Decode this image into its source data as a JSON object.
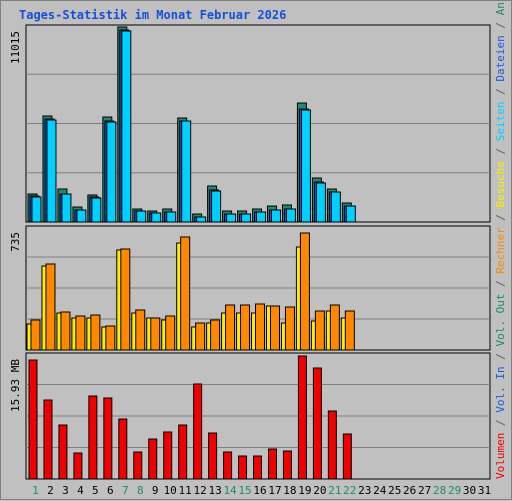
{
  "title": "Tages-Statistik im Monat Februar 2026",
  "chart_data": [
    {
      "type": "bar",
      "name": "top",
      "scale_label": "11015",
      "ylim": [
        0,
        11015
      ],
      "x": [
        "1",
        "2",
        "3",
        "4",
        "5",
        "6",
        "7",
        "8",
        "9",
        "10",
        "11",
        "12",
        "13",
        "14",
        "15",
        "16",
        "17",
        "18",
        "19",
        "20",
        "21",
        "22",
        "23",
        "24",
        "25",
        "26",
        "27",
        "28",
        "29",
        "30",
        "31"
      ],
      "series": [
        {
          "name": "Anfragen",
          "color": "#1e8a70",
          "values": [
            1600,
            5960,
            1860,
            840,
            1510,
            5920,
            11015,
            740,
            640,
            720,
            5860,
            430,
            2020,
            640,
            620,
            740,
            880,
            940,
            6700,
            2470,
            1840,
            1050,
            null,
            null,
            null,
            null,
            null,
            null,
            null,
            null,
            null
          ]
        },
        {
          "name": "Dateien",
          "color": "#1a5ae0",
          "values": [
            1470,
            5840,
            1600,
            700,
            1400,
            5700,
            10850,
            620,
            520,
            580,
            5730,
            290,
            1810,
            480,
            460,
            580,
            690,
            740,
            6380,
            2260,
            1700,
            930,
            null,
            null,
            null,
            null,
            null,
            null,
            null,
            null,
            null
          ]
        },
        {
          "name": "Seiten",
          "color": "#00d0ff",
          "values": [
            1420,
            5780,
            1560,
            680,
            1350,
            5650,
            10800,
            600,
            500,
            560,
            5700,
            280,
            1760,
            460,
            440,
            560,
            670,
            720,
            6300,
            2200,
            1680,
            900,
            null,
            null,
            null,
            null,
            null,
            null,
            null,
            null,
            null
          ]
        }
      ]
    },
    {
      "type": "bar",
      "name": "middle",
      "scale_label": "735",
      "ylim": [
        0,
        735
      ],
      "x": [
        "1",
        "2",
        "3",
        "4",
        "5",
        "6",
        "7",
        "8",
        "9",
        "10",
        "11",
        "12",
        "13",
        "14",
        "15",
        "16",
        "17",
        "18",
        "19",
        "20",
        "21",
        "22",
        "23",
        "24",
        "25",
        "26",
        "27",
        "28",
        "29",
        "30",
        "31"
      ],
      "series": [
        {
          "name": "Besuche",
          "color": "#f8f000",
          "values": [
            158,
            505,
            222,
            192,
            192,
            140,
            602,
            222,
            192,
            182,
            646,
            140,
            160,
            222,
            222,
            222,
            268,
            160,
            620,
            172,
            232,
            192,
            null,
            null,
            null,
            null,
            null,
            null,
            null,
            null,
            null
          ]
        },
        {
          "name": "Rechner",
          "color": "#ff8800",
          "values": [
            178,
            518,
            228,
            202,
            212,
            145,
            610,
            238,
            192,
            202,
            683,
            160,
            180,
            270,
            270,
            280,
            268,
            260,
            704,
            232,
            270,
            232,
            null,
            null,
            null,
            null,
            null,
            null,
            null,
            null,
            null
          ]
        }
      ]
    },
    {
      "type": "bar",
      "name": "bottom",
      "scale_label": "15.93 MB",
      "ylim": [
        0,
        15.93
      ],
      "x": [
        "1",
        "2",
        "3",
        "4",
        "5",
        "6",
        "7",
        "8",
        "9",
        "10",
        "11",
        "12",
        "13",
        "14",
        "15",
        "16",
        "17",
        "18",
        "19",
        "20",
        "21",
        "22",
        "23",
        "24",
        "25",
        "26",
        "27",
        "28",
        "29",
        "30",
        "31"
      ],
      "series": [
        {
          "name": "Volumen",
          "color": "#f00000",
          "values": [
            15.3,
            10.2,
            6.9,
            3.4,
            10.6,
            10.4,
            7.7,
            3.5,
            5.1,
            6.0,
            7.0,
            12.2,
            5.9,
            3.5,
            3.0,
            2.9,
            3.8,
            3.6,
            15.8,
            14.3,
            8.8,
            5.8,
            null,
            null,
            null,
            null,
            null,
            null,
            null,
            null,
            null
          ]
        }
      ]
    }
  ],
  "legend": {
    "items": [
      {
        "text": "Volumen",
        "color": "#f00000"
      },
      {
        "text": "/",
        "color": "#606060"
      },
      {
        "text": "Vol. In",
        "color": "#1a5ae0"
      },
      {
        "text": "/",
        "color": "#606060"
      },
      {
        "text": "Vol. Out",
        "color": "#1e8a70"
      },
      {
        "text": "/",
        "color": "#606060"
      },
      {
        "text": "Rechner",
        "color": "#ff8800"
      },
      {
        "text": "/",
        "color": "#606060"
      },
      {
        "text": "Besuche",
        "color": "#f8f000"
      },
      {
        "text": "/",
        "color": "#606060"
      },
      {
        "text": "Seiten",
        "color": "#00d0ff"
      },
      {
        "text": "/",
        "color": "#606060"
      },
      {
        "text": "Dateien",
        "color": "#1a5ae0"
      },
      {
        "text": "/",
        "color": "#606060"
      },
      {
        "text": "Anfragen",
        "color": "#1e8a70"
      }
    ]
  },
  "x_label_colors": {
    "weekday": "#000000",
    "weekend": "#1e8a70"
  },
  "weekend_days": [
    "1",
    "7",
    "8",
    "14",
    "15",
    "21",
    "22",
    "28",
    "29"
  ]
}
